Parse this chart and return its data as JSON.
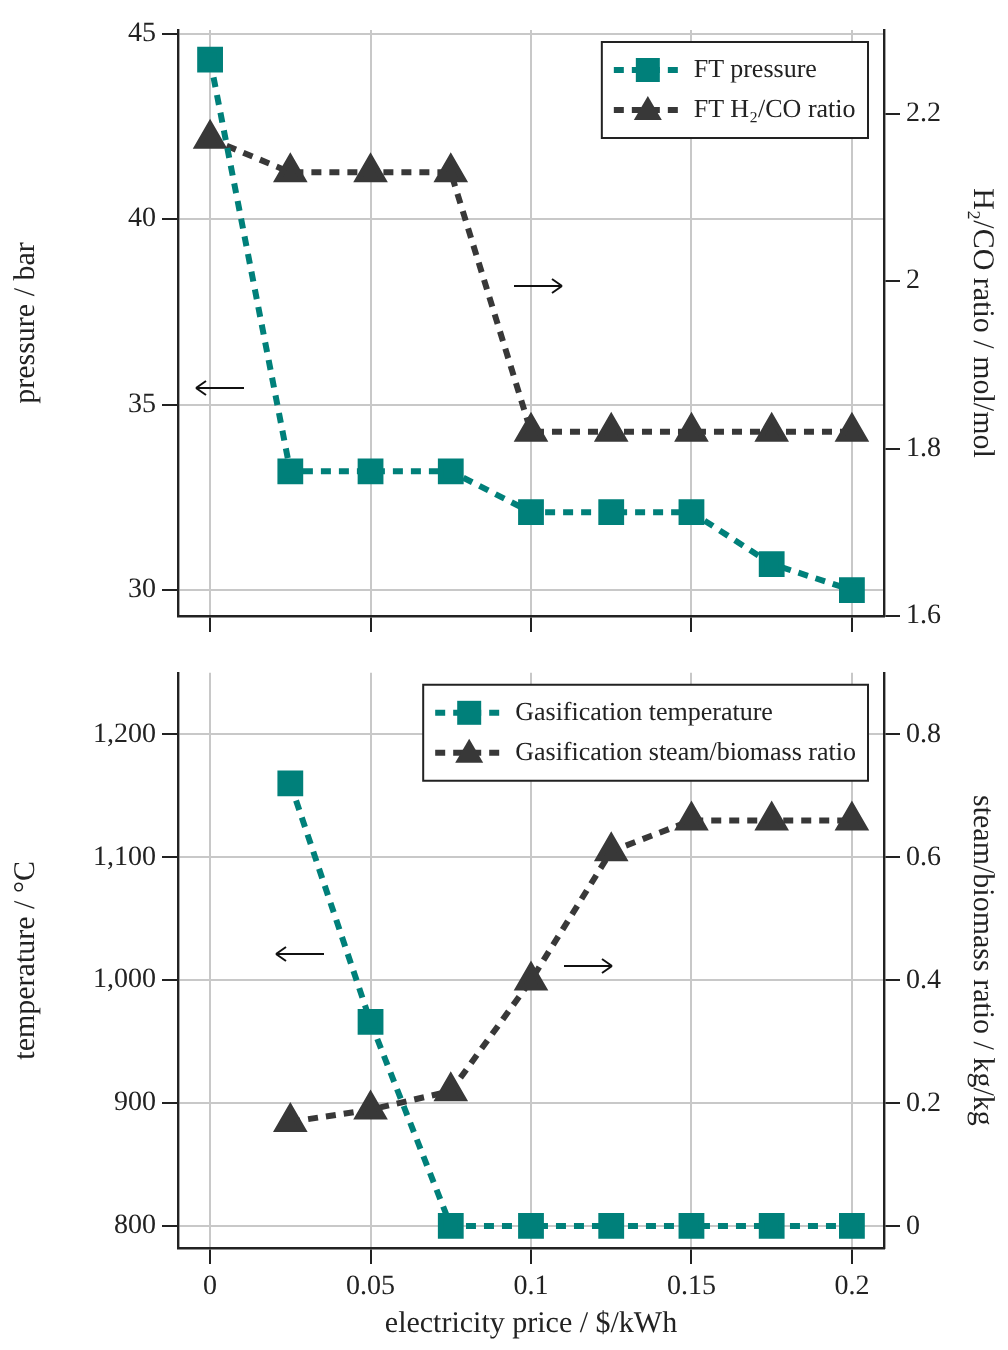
{
  "chart_data": [
    {
      "type": "line",
      "xlim": [
        -0.01,
        0.21
      ],
      "xticks": [
        0,
        0.05,
        0.1,
        0.15,
        0.2
      ],
      "ylabel": "pressure / bar",
      "y2label": "H₂/CO ratio / mol/mol",
      "ylim": [
        29.3,
        45.1
      ],
      "yticks": [
        30,
        35,
        40,
        45
      ],
      "y2lim": [
        1.6,
        2.3
      ],
      "y2ticks": [
        1.6,
        1.8,
        2,
        2.2
      ],
      "grid": true,
      "legend": "top right",
      "tick_labels": "y",
      "line_style": "dashed",
      "x": [
        0,
        0.025,
        0.05,
        0.075,
        0.1,
        0.125,
        0.15,
        0.175,
        0.2
      ],
      "series": [
        {
          "name": "FT pressure",
          "color": "#00807a",
          "marker": "square",
          "values": [
            44.3,
            33.2,
            33.2,
            33.2,
            32.1,
            32.1,
            32.1,
            30.7,
            30
          ]
        },
        {
          "name": "FT H₂/CO ratio",
          "color": "#383838",
          "marker": "triangle",
          "axis": "y2",
          "values": [
            2.17,
            2.13,
            2.13,
            2.13,
            1.82,
            1.82,
            1.82,
            1.82,
            1.82
          ]
        }
      ]
    },
    {
      "type": "line",
      "xlim": [
        -0.01,
        0.21
      ],
      "xticks": [
        0,
        0.05,
        0.1,
        0.15,
        0.2
      ],
      "xlabel": "electricity price / $/kWh",
      "ylabel": "temperature / °C",
      "y2label": "steam/biomass ratio / kg/kg",
      "ylim": [
        782,
        1250
      ],
      "yticks": [
        {
          "value": 800,
          "label": "800"
        },
        {
          "value": 900,
          "label": "900"
        },
        {
          "value": 1000,
          "label": "1,000"
        },
        {
          "value": 1100,
          "label": "1,100"
        },
        {
          "value": 1200,
          "label": "1,200"
        }
      ],
      "y2lim": [
        -0.035,
        0.9
      ],
      "y2ticks": [
        0,
        0.2,
        0.4,
        0.6,
        0.8
      ],
      "grid": true,
      "legend": "top right",
      "line_style": "dashed",
      "x": [
        0.025,
        0.05,
        0.075,
        0.1,
        0.125,
        0.15,
        0.175,
        0.2
      ],
      "series": [
        {
          "name": "Gasification temperature",
          "color": "#00807a",
          "marker": "square",
          "values": [
            1160,
            966,
            800,
            800,
            800,
            800,
            800,
            800
          ]
        },
        {
          "name": "Gasification steam/biomass ratio",
          "color": "#383838",
          "marker": "triangle",
          "axis": "y2",
          "values": [
            0.17,
            0.19,
            0.22,
            0.4,
            0.61,
            0.66,
            0.66,
            0.66
          ]
        }
      ]
    }
  ]
}
